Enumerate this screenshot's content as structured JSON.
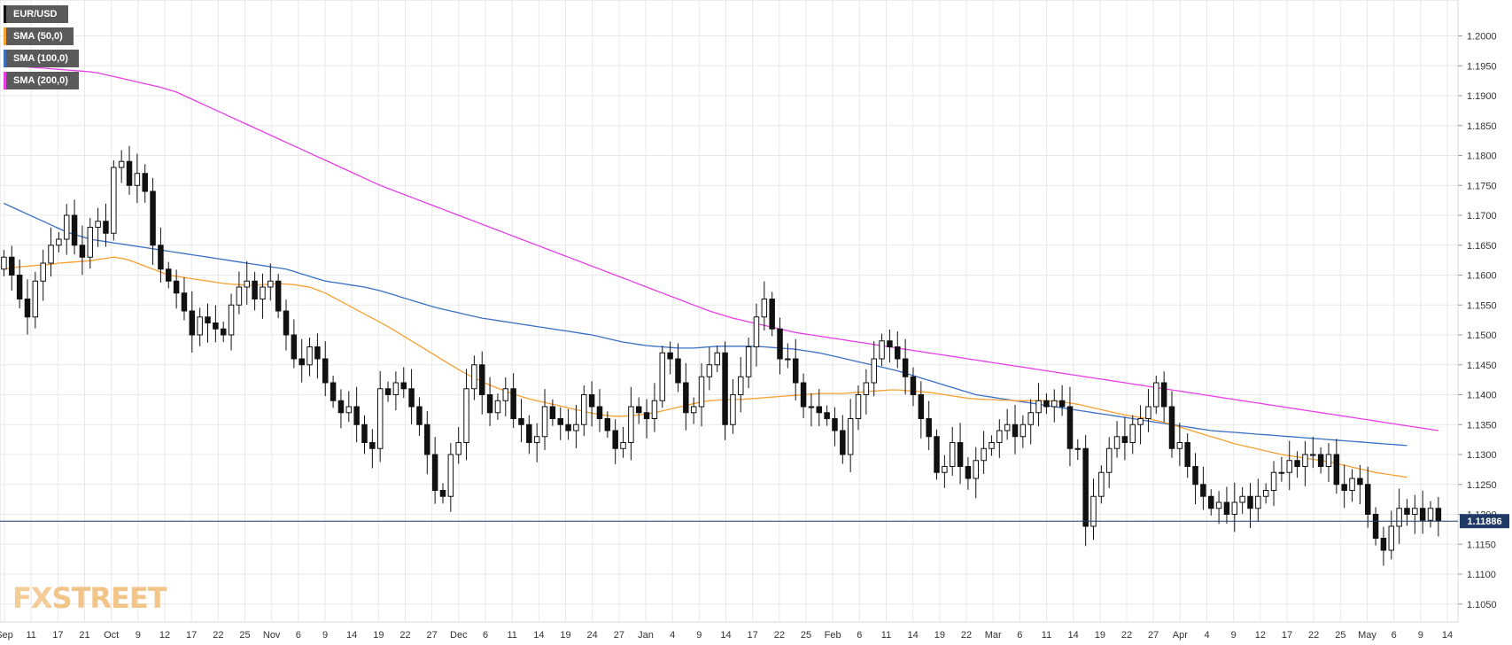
{
  "logo": {
    "fx": "FX",
    "street": "STREET"
  },
  "legend": [
    {
      "label": "EUR/USD",
      "color": "#111111"
    },
    {
      "label": "SMA (50,0)",
      "color": "#f5a031"
    },
    {
      "label": "SMA (100,0)",
      "color": "#3a6fc4"
    },
    {
      "label": "SMA (200,0)",
      "color": "#e83ee8"
    }
  ],
  "colors": {
    "grid": "#e8e8ec",
    "bull_body": "#ffffff",
    "bear_body": "#111111",
    "price_line": "#1f3a66",
    "price_badge": "#1f3a66"
  },
  "chart_data": {
    "type": "candlestick",
    "ylim": [
      1.102,
      1.206
    ],
    "y_ticks": [
      "1.2000",
      "1.1950",
      "1.1900",
      "1.1850",
      "1.1800",
      "1.1750",
      "1.1700",
      "1.1650",
      "1.1600",
      "1.1550",
      "1.1500",
      "1.1450",
      "1.1400",
      "1.1350",
      "1.1300",
      "1.1250",
      "1.1200",
      "1.1150",
      "1.1100",
      "1.1050"
    ],
    "x_ticks": [
      "Sep",
      "11",
      "17",
      "21",
      "Oct",
      "9",
      "12",
      "17",
      "22",
      "25",
      "Nov",
      "6",
      "9",
      "14",
      "19",
      "22",
      "27",
      "Dec",
      "6",
      "11",
      "14",
      "19",
      "24",
      "27",
      "Jan",
      "4",
      "9",
      "14",
      "17",
      "22",
      "25",
      "Feb",
      "6",
      "11",
      "14",
      "19",
      "22",
      "Mar",
      "6",
      "11",
      "14",
      "19",
      "22",
      "27",
      "Apr",
      "4",
      "9",
      "12",
      "17",
      "22",
      "25",
      "May",
      "6",
      "9",
      "14"
    ],
    "last_price": "1.11886",
    "closes": [
      1.163,
      1.16,
      1.156,
      1.153,
      1.159,
      1.162,
      1.165,
      1.166,
      1.17,
      1.165,
      1.163,
      1.168,
      1.169,
      1.167,
      1.178,
      1.179,
      1.175,
      1.177,
      1.174,
      1.165,
      1.161,
      1.159,
      1.157,
      1.154,
      1.15,
      1.153,
      1.152,
      1.151,
      1.15,
      1.155,
      1.158,
      1.159,
      1.156,
      1.158,
      1.159,
      1.154,
      1.15,
      1.146,
      1.145,
      1.148,
      1.146,
      1.142,
      1.139,
      1.137,
      1.138,
      1.135,
      1.132,
      1.131,
      1.141,
      1.14,
      1.142,
      1.141,
      1.138,
      1.135,
      1.13,
      1.124,
      1.123,
      1.13,
      1.132,
      1.141,
      1.145,
      1.14,
      1.137,
      1.139,
      1.141,
      1.136,
      1.135,
      1.132,
      1.133,
      1.138,
      1.136,
      1.135,
      1.134,
      1.135,
      1.14,
      1.138,
      1.136,
      1.134,
      1.131,
      1.132,
      1.138,
      1.137,
      1.136,
      1.139,
      1.147,
      1.146,
      1.142,
      1.137,
      1.138,
      1.143,
      1.145,
      1.147,
      1.135,
      1.14,
      1.143,
      1.148,
      1.153,
      1.156,
      1.151,
      1.146,
      1.146,
      1.142,
      1.138,
      1.138,
      1.137,
      1.136,
      1.134,
      1.13,
      1.136,
      1.14,
      1.142,
      1.146,
      1.149,
      1.148,
      1.146,
      1.143,
      1.14,
      1.136,
      1.133,
      1.127,
      1.128,
      1.132,
      1.128,
      1.126,
      1.129,
      1.131,
      1.132,
      1.134,
      1.135,
      1.133,
      1.135,
      1.137,
      1.139,
      1.138,
      1.139,
      1.138,
      1.131,
      1.131,
      1.118,
      1.123,
      1.127,
      1.131,
      1.133,
      1.132,
      1.135,
      1.136,
      1.138,
      1.142,
      1.138,
      1.131,
      1.132,
      1.128,
      1.125,
      1.123,
      1.121,
      1.122,
      1.12,
      1.122,
      1.123,
      1.121,
      1.123,
      1.124,
      1.127,
      1.127,
      1.129,
      1.128,
      1.13,
      1.13,
      1.128,
      1.13,
      1.125,
      1.124,
      1.126,
      1.125,
      1.12,
      1.116,
      1.114,
      1.118,
      1.121,
      1.12,
      1.121,
      1.119,
      1.121,
      1.1189
    ],
    "sma50": [
      1.161,
      1.1612,
      1.1614,
      1.1615,
      1.1616,
      1.1617,
      1.1618,
      1.162,
      1.1621,
      1.1622,
      1.1623,
      1.1624,
      1.1626,
      1.1628,
      1.163,
      1.1628,
      1.1625,
      1.162,
      1.1615,
      1.161,
      1.1605,
      1.16,
      1.1598,
      1.1596,
      1.1594,
      1.1592,
      1.159,
      1.1588,
      1.1586,
      1.1585,
      1.1584,
      1.1583,
      1.1583,
      1.1584,
      1.1585,
      1.1586,
      1.1585,
      1.1584,
      1.1582,
      1.158,
      1.1575,
      1.157,
      1.1563,
      1.1556,
      1.1549,
      1.1542,
      1.1535,
      1.1528,
      1.1521,
      1.1514,
      1.1506,
      1.1498,
      1.149,
      1.1482,
      1.1474,
      1.1466,
      1.1458,
      1.145,
      1.1442,
      1.1435,
      1.1428,
      1.1422,
      1.1416,
      1.1411,
      1.1406,
      1.1401,
      1.1397,
      1.1393,
      1.139,
      1.1387,
      1.1384,
      1.1381,
      1.1378,
      1.1375,
      1.1372,
      1.1369,
      1.1367,
      1.1365,
      1.1364,
      1.1364,
      1.1365,
      1.1366,
      1.1368,
      1.137,
      1.1373,
      1.1376,
      1.1379,
      1.1382,
      1.1385,
      1.1388,
      1.139,
      1.1391,
      1.1392,
      1.1392,
      1.1392,
      1.1393,
      1.1394,
      1.1395,
      1.1396,
      1.1397,
      1.1398,
      1.1399,
      1.14,
      1.1401,
      1.1402,
      1.1402,
      1.1402,
      1.1402,
      1.1403,
      1.1404,
      1.1405,
      1.1406,
      1.1407,
      1.1408,
      1.1408,
      1.1407,
      1.1406,
      1.1405,
      1.1404,
      1.1402,
      1.14,
      1.1398,
      1.1396,
      1.1394,
      1.1393,
      1.1392,
      1.1392,
      1.1391,
      1.1391,
      1.139,
      1.139,
      1.139,
      1.139,
      1.139,
      1.1389,
      1.1388,
      1.1386,
      1.1384,
      1.1381,
      1.1378,
      1.1375,
      1.1372,
      1.1369,
      1.1366,
      1.1364,
      1.1362,
      1.136,
      1.1357,
      1.1354,
      1.135,
      1.1346,
      1.1342,
      1.1338,
      1.1334,
      1.133,
      1.1326,
      1.1322,
      1.1318,
      1.1315,
      1.1312,
      1.1309,
      1.1306,
      1.1303,
      1.13,
      1.1298,
      1.1296,
      1.1294,
      1.1292,
      1.129,
      1.1288,
      1.1285,
      1.1282,
      1.1279,
      1.1276,
      1.1273,
      1.127,
      1.1268,
      1.1266,
      1.1264,
      1.1262
    ],
    "sma100": [
      1.172,
      1.1714,
      1.1708,
      1.1702,
      1.1696,
      1.169,
      1.1684,
      1.1678,
      1.1672,
      1.1668,
      1.1664,
      1.166,
      1.1658,
      1.1656,
      1.1654,
      1.1652,
      1.165,
      1.1648,
      1.1646,
      1.1644,
      1.1642,
      1.164,
      1.1638,
      1.1636,
      1.1634,
      1.1632,
      1.163,
      1.1628,
      1.1626,
      1.1624,
      1.1622,
      1.162,
      1.1618,
      1.1616,
      1.1614,
      1.1612,
      1.161,
      1.1606,
      1.1602,
      1.1598,
      1.1594,
      1.159,
      1.1588,
      1.1586,
      1.1584,
      1.1582,
      1.158,
      1.1577,
      1.1574,
      1.157,
      1.1566,
      1.1562,
      1.1558,
      1.1554,
      1.155,
      1.1546,
      1.1543,
      1.154,
      1.1537,
      1.1534,
      1.1531,
      1.1528,
      1.1526,
      1.1524,
      1.1522,
      1.152,
      1.1518,
      1.1516,
      1.1514,
      1.1512,
      1.151,
      1.1508,
      1.1506,
      1.1504,
      1.1502,
      1.15,
      1.1497,
      1.1494,
      1.1491,
      1.1488,
      1.1486,
      1.1484,
      1.1482,
      1.1481,
      1.148,
      1.1479,
      1.1478,
      1.1478,
      1.1478,
      1.1479,
      1.148,
      1.1481,
      1.1481,
      1.1481,
      1.1481,
      1.1481,
      1.1481,
      1.148,
      1.1479,
      1.1478,
      1.1477,
      1.1476,
      1.1474,
      1.1472,
      1.147,
      1.1467,
      1.1464,
      1.1461,
      1.1458,
      1.1455,
      1.1452,
      1.1449,
      1.1446,
      1.1443,
      1.144,
      1.1436,
      1.1432,
      1.1428,
      1.1424,
      1.142,
      1.1416,
      1.1412,
      1.1408,
      1.1404,
      1.14,
      1.1398,
      1.1396,
      1.1394,
      1.1392,
      1.139,
      1.1388,
      1.1386,
      1.1384,
      1.1382,
      1.138,
      1.1378,
      1.1376,
      1.1374,
      1.1372,
      1.137,
      1.1368,
      1.1366,
      1.1364,
      1.1362,
      1.136,
      1.1358,
      1.1356,
      1.1354,
      1.1352,
      1.135,
      1.1348,
      1.1346,
      1.1344,
      1.1342,
      1.134,
      1.1339,
      1.1338,
      1.1337,
      1.1336,
      1.1335,
      1.1334,
      1.1333,
      1.1332,
      1.1331,
      1.133,
      1.1329,
      1.1328,
      1.1327,
      1.1326,
      1.1325,
      1.1324,
      1.1323,
      1.1322,
      1.1321,
      1.132,
      1.1319,
      1.1318,
      1.1317,
      1.1316,
      1.1315
    ],
    "sma200": [
      1.195,
      1.195,
      1.1949,
      1.1948,
      1.1947,
      1.1946,
      1.1945,
      1.1944,
      1.1943,
      1.1942,
      1.1941,
      1.194,
      1.1938,
      1.1935,
      1.1932,
      1.1929,
      1.1926,
      1.1923,
      1.192,
      1.1917,
      1.1914,
      1.191,
      1.1906,
      1.19,
      1.1894,
      1.1888,
      1.1882,
      1.1876,
      1.187,
      1.1864,
      1.1858,
      1.1852,
      1.1846,
      1.184,
      1.1834,
      1.1828,
      1.1822,
      1.1816,
      1.181,
      1.1804,
      1.1798,
      1.1792,
      1.1786,
      1.178,
      1.1774,
      1.1768,
      1.1762,
      1.1756,
      1.175,
      1.1745,
      1.174,
      1.1735,
      1.173,
      1.1725,
      1.172,
      1.1715,
      1.171,
      1.1705,
      1.17,
      1.1695,
      1.169,
      1.1685,
      1.168,
      1.1675,
      1.167,
      1.1665,
      1.166,
      1.1655,
      1.165,
      1.1645,
      1.164,
      1.1635,
      1.163,
      1.1625,
      1.162,
      1.1615,
      1.161,
      1.1605,
      1.16,
      1.1595,
      1.159,
      1.1585,
      1.158,
      1.1575,
      1.157,
      1.1565,
      1.156,
      1.1555,
      1.155,
      1.1545,
      1.154,
      1.1536,
      1.1532,
      1.1528,
      1.1525,
      1.1522,
      1.1519,
      1.1516,
      1.1513,
      1.151,
      1.1507,
      1.1504,
      1.1502,
      1.15,
      1.1498,
      1.1496,
      1.1494,
      1.1492,
      1.149,
      1.1488,
      1.1486,
      1.1484,
      1.1482,
      1.148,
      1.1478,
      1.1476,
      1.1474,
      1.1472,
      1.147,
      1.1468,
      1.1466,
      1.1464,
      1.1462,
      1.146,
      1.1458,
      1.1456,
      1.1454,
      1.1452,
      1.145,
      1.1448,
      1.1446,
      1.1444,
      1.1442,
      1.144,
      1.1438,
      1.1436,
      1.1434,
      1.1432,
      1.143,
      1.1428,
      1.1426,
      1.1424,
      1.1422,
      1.142,
      1.1418,
      1.1416,
      1.1414,
      1.1412,
      1.141,
      1.1408,
      1.1406,
      1.1404,
      1.1402,
      1.14,
      1.1398,
      1.1396,
      1.1394,
      1.1392,
      1.139,
      1.1388,
      1.1386,
      1.1384,
      1.1382,
      1.138,
      1.1378,
      1.1376,
      1.1374,
      1.1372,
      1.137,
      1.1368,
      1.1366,
      1.1364,
      1.1362,
      1.136,
      1.1358,
      1.1356,
      1.1354,
      1.1352,
      1.135,
      1.1348,
      1.1346,
      1.1344,
      1.1342,
      1.134,
      1.1338
    ]
  }
}
